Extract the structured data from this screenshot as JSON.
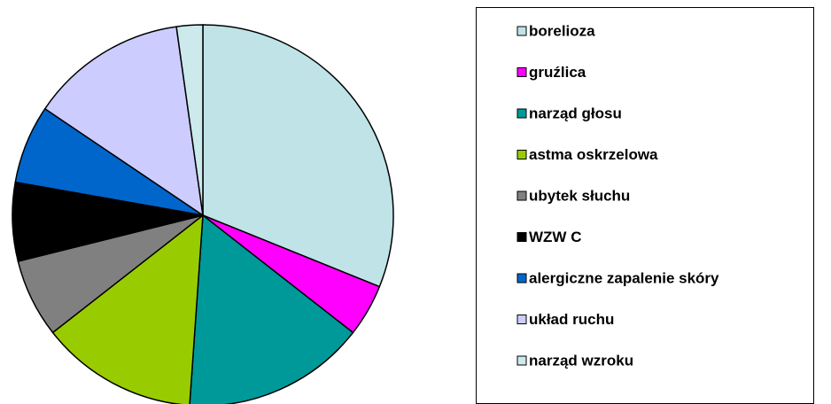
{
  "chart_data": {
    "type": "pie",
    "categories": [
      "borelioza",
      "gruźlica",
      "narząd głosu",
      "astma oskrzelowa",
      "ubytek słuchu",
      "WZW C",
      "alergiczne zapalenie skóry",
      "układ ruchu",
      "narząd wzroku"
    ],
    "values": [
      14,
      2,
      7,
      6,
      3,
      3,
      3,
      6,
      1
    ],
    "colors": [
      "#bfe3e6",
      "#ff00ff",
      "#009999",
      "#99cc00",
      "#808080",
      "#000000",
      "#0066cc",
      "#ccccff",
      "#cce9ec"
    ],
    "legend": "right"
  }
}
